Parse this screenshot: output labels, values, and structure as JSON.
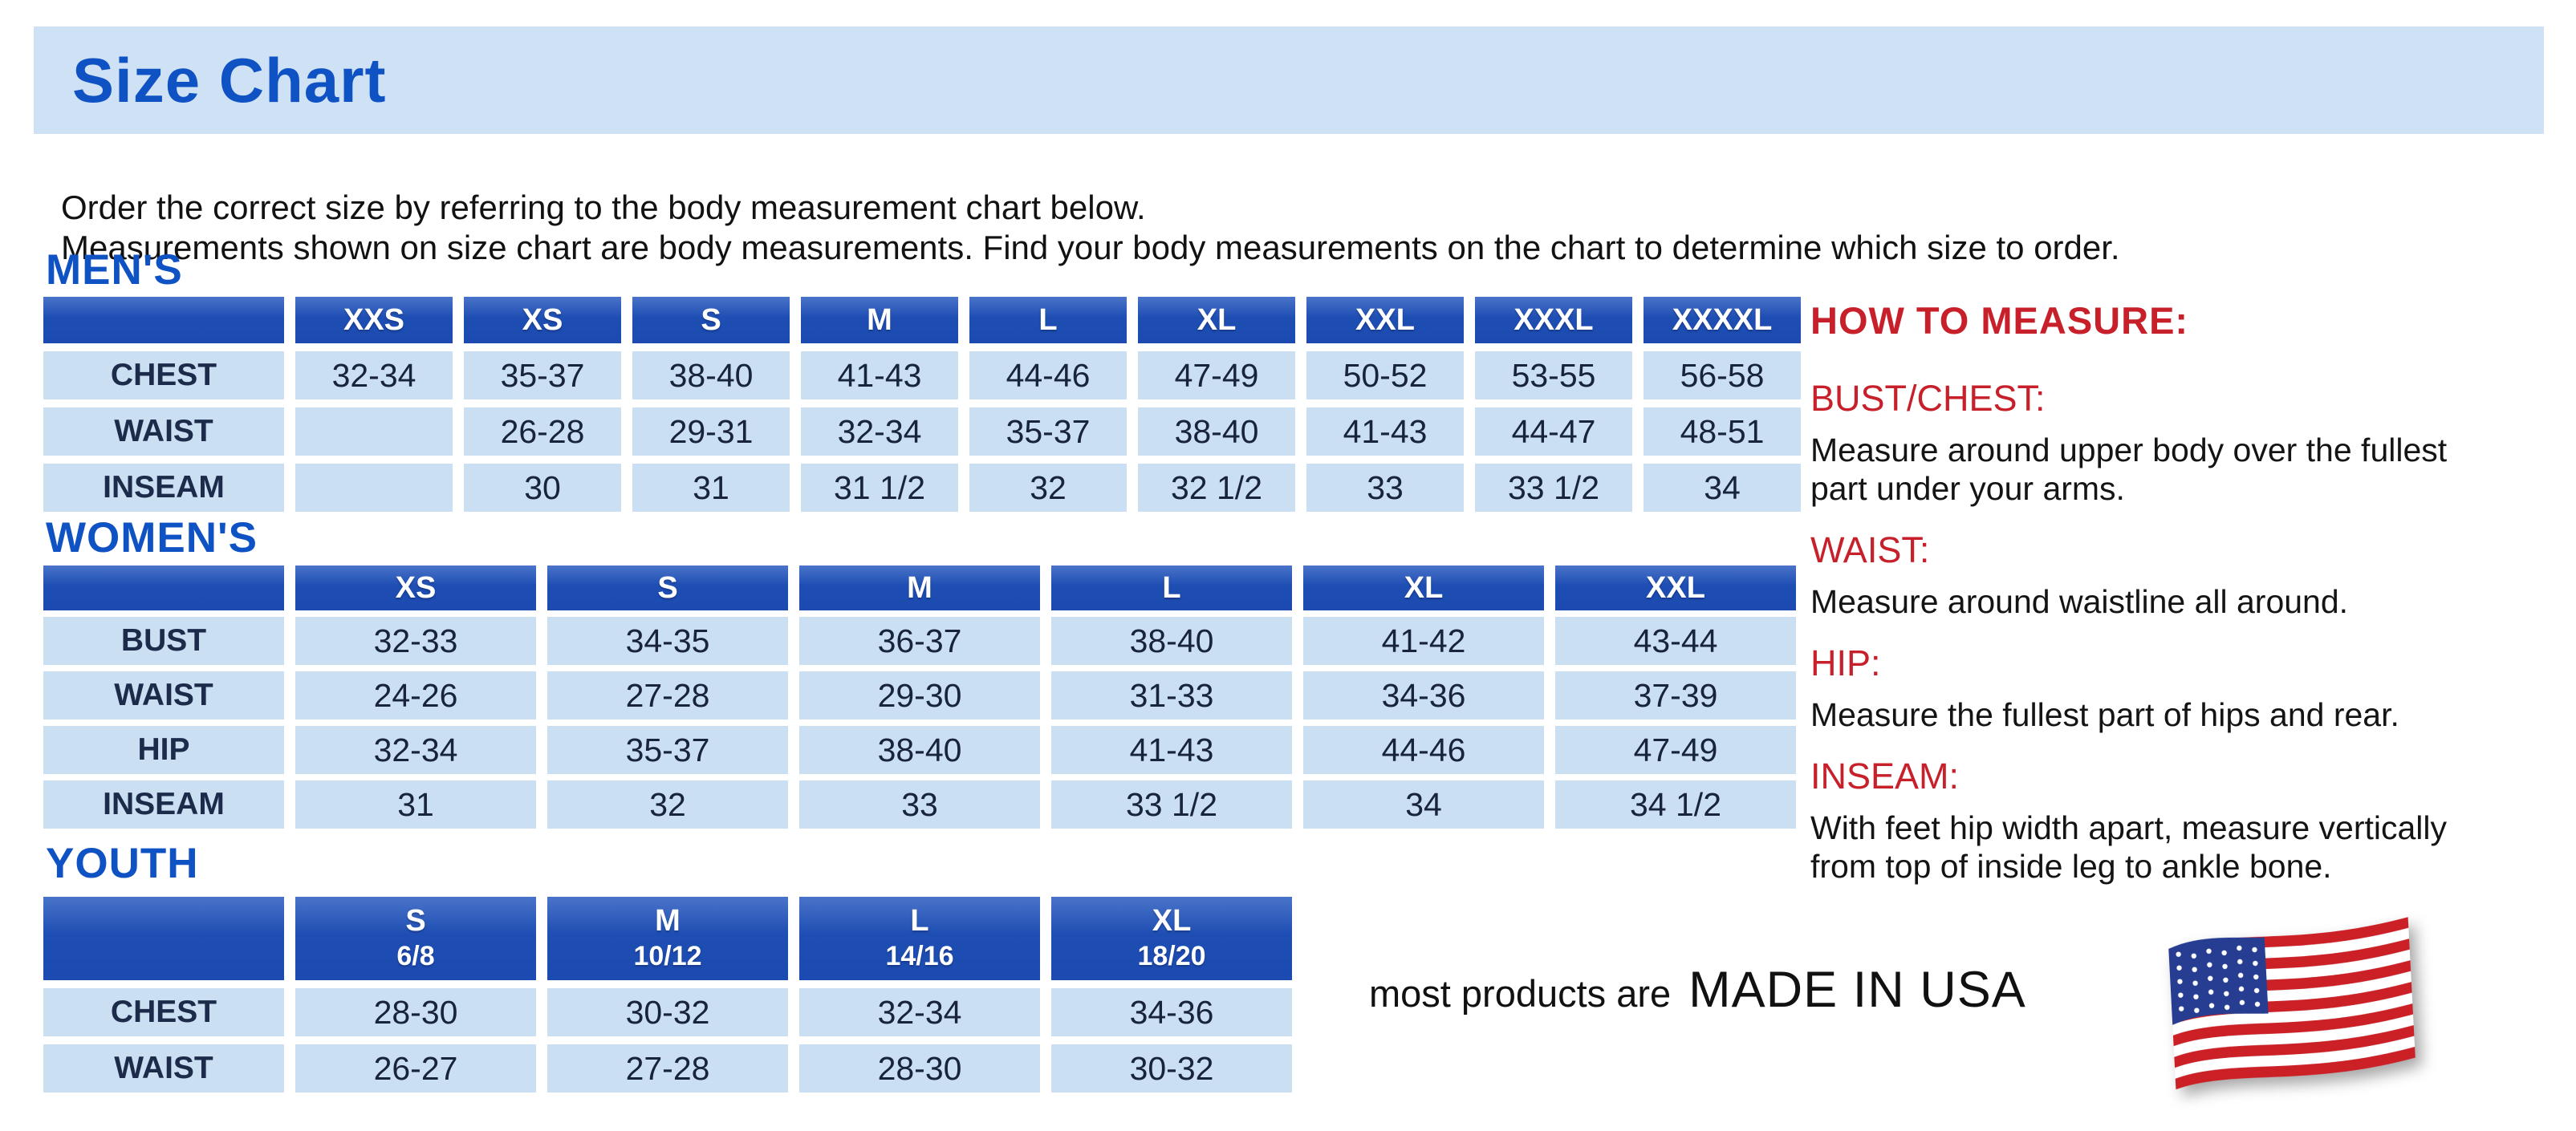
{
  "page": {
    "title": "Size Chart",
    "intro_line1": "Order the correct size by referring to the body measurement chart below.",
    "intro_line2": "Measurements shown on size chart are body measurements.  Find your body measurements on the chart to determine which size to order."
  },
  "tables": {
    "mens": {
      "heading": "MEN'S",
      "sizes": [
        "XXS",
        "XS",
        "S",
        "M",
        "L",
        "XL",
        "XXL",
        "XXXL",
        "XXXXL"
      ],
      "rows": [
        {
          "label": "CHEST",
          "values": [
            "32-34",
            "35-37",
            "38-40",
            "41-43",
            "44-46",
            "47-49",
            "50-52",
            "53-55",
            "56-58"
          ]
        },
        {
          "label": "WAIST",
          "values": [
            "",
            "26-28",
            "29-31",
            "32-34",
            "35-37",
            "38-40",
            "41-43",
            "44-47",
            "48-51"
          ]
        },
        {
          "label": "INSEAM",
          "values": [
            "",
            "30",
            "31",
            "31 1/2",
            "32",
            "32 1/2",
            "33",
            "33 1/2",
            "34"
          ]
        }
      ]
    },
    "womens": {
      "heading": "WOMEN'S",
      "sizes": [
        "XS",
        "S",
        "M",
        "L",
        "XL",
        "XXL"
      ],
      "rows": [
        {
          "label": "BUST",
          "values": [
            "32-33",
            "34-35",
            "36-37",
            "38-40",
            "41-42",
            "43-44"
          ]
        },
        {
          "label": "WAIST",
          "values": [
            "24-26",
            "27-28",
            "29-30",
            "31-33",
            "34-36",
            "37-39"
          ]
        },
        {
          "label": "HIP",
          "values": [
            "32-34",
            "35-37",
            "38-40",
            "41-43",
            "44-46",
            "47-49"
          ]
        },
        {
          "label": "INSEAM",
          "values": [
            "31",
            "32",
            "33",
            "33 1/2",
            "34",
            "34 1/2"
          ]
        }
      ]
    },
    "youth": {
      "heading": "YOUTH",
      "sizes": [
        {
          "size": "S",
          "range": "6/8"
        },
        {
          "size": "M",
          "range": "10/12"
        },
        {
          "size": "L",
          "range": "14/16"
        },
        {
          "size": "XL",
          "range": "18/20"
        }
      ],
      "rows": [
        {
          "label": "CHEST",
          "values": [
            "28-30",
            "30-32",
            "32-34",
            "34-36"
          ]
        },
        {
          "label": "WAIST",
          "values": [
            "26-27",
            "27-28",
            "28-30",
            "30-32"
          ]
        }
      ]
    }
  },
  "how_to_measure": {
    "heading": "HOW TO MEASURE:",
    "items": [
      {
        "label": "BUST/CHEST:",
        "text": "Measure around upper body over the fullest part under your arms."
      },
      {
        "label": "WAIST:",
        "text": "Measure around waistline all around."
      },
      {
        "label": "HIP:",
        "text": "Measure the fullest part of hips and rear."
      },
      {
        "label": "INSEAM:",
        "text": "With feet hip width apart, measure vertically from top of inside leg to ankle bone."
      }
    ]
  },
  "footer": {
    "prefix": "most products are",
    "emphasis": "MADE IN USA",
    "flag_icon": "us-flag-icon"
  },
  "colors": {
    "header_blue": "#1e4eb3",
    "cell_light_blue": "#cbdff3",
    "banner_light_blue": "#cfe1f4",
    "heading_blue": "#0f52c4",
    "accent_red": "#c8202b"
  }
}
